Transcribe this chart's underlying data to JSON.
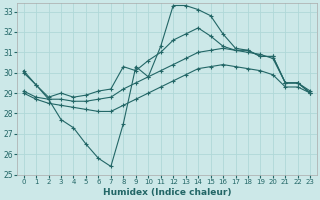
{
  "xlabel": "Humidex (Indice chaleur)",
  "xlim": [
    -0.5,
    23.5
  ],
  "ylim": [
    25,
    33.4
  ],
  "yticks": [
    25,
    26,
    27,
    28,
    29,
    30,
    31,
    32,
    33
  ],
  "xticks": [
    0,
    1,
    2,
    3,
    4,
    5,
    6,
    7,
    8,
    9,
    10,
    11,
    12,
    13,
    14,
    15,
    16,
    17,
    18,
    19,
    20,
    21,
    22,
    23
  ],
  "bg_color": "#cce8e8",
  "grid_color": "#b0d8d8",
  "line_color": "#226666",
  "line1_y": [
    30.0,
    29.4,
    28.8,
    29.0,
    28.8,
    28.9,
    29.1,
    29.2,
    30.3,
    30.1,
    30.6,
    31.0,
    31.6,
    31.9,
    32.2,
    31.8,
    31.3,
    31.1,
    31.1,
    30.8,
    30.8,
    29.5,
    29.5,
    29.0
  ],
  "line2_y": [
    29.1,
    28.8,
    28.7,
    28.7,
    28.6,
    28.6,
    28.7,
    28.8,
    29.2,
    29.5,
    29.8,
    30.1,
    30.4,
    30.7,
    31.0,
    31.1,
    31.2,
    31.1,
    31.0,
    30.9,
    30.7,
    29.5,
    29.5,
    29.1
  ],
  "line3_y": [
    29.0,
    28.7,
    28.5,
    28.4,
    28.3,
    28.2,
    28.1,
    28.1,
    28.4,
    28.7,
    29.0,
    29.3,
    29.6,
    29.9,
    30.2,
    30.3,
    30.4,
    30.3,
    30.2,
    30.1,
    29.9,
    29.3,
    29.3,
    29.0
  ],
  "line4_y": [
    30.1,
    29.4,
    28.7,
    27.7,
    27.3,
    26.5,
    25.8,
    25.4,
    27.5,
    30.3,
    29.8,
    31.3,
    33.3,
    33.3,
    33.1,
    32.8,
    31.9,
    31.2,
    31.1,
    30.8,
    30.8,
    29.5,
    29.5,
    29.0
  ]
}
